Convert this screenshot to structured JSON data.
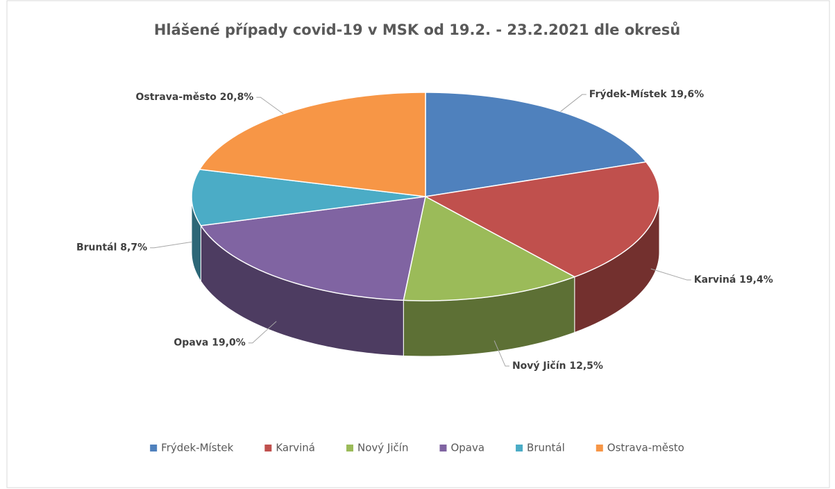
{
  "chart_data": {
    "type": "pie3d",
    "title": "Hlášené případy covid-19 v MSK od 19.2. - 23.2.2021 dle okresů",
    "categories": [
      "Frýdek-Místek",
      "Karviná",
      "Nový Jičín",
      "Opava",
      "Bruntál",
      "Ostrava-město"
    ],
    "values": [
      19.6,
      19.4,
      12.5,
      19.0,
      8.7,
      20.8
    ],
    "value_labels": [
      "19,6%",
      "19,4%",
      "12,5%",
      "19,0%",
      "8,7%",
      "20,8%"
    ],
    "colors": [
      "#4f81bd",
      "#c0504d",
      "#9bbb59",
      "#8064a2",
      "#4bacc6",
      "#f79646"
    ],
    "legend": "bottom"
  }
}
